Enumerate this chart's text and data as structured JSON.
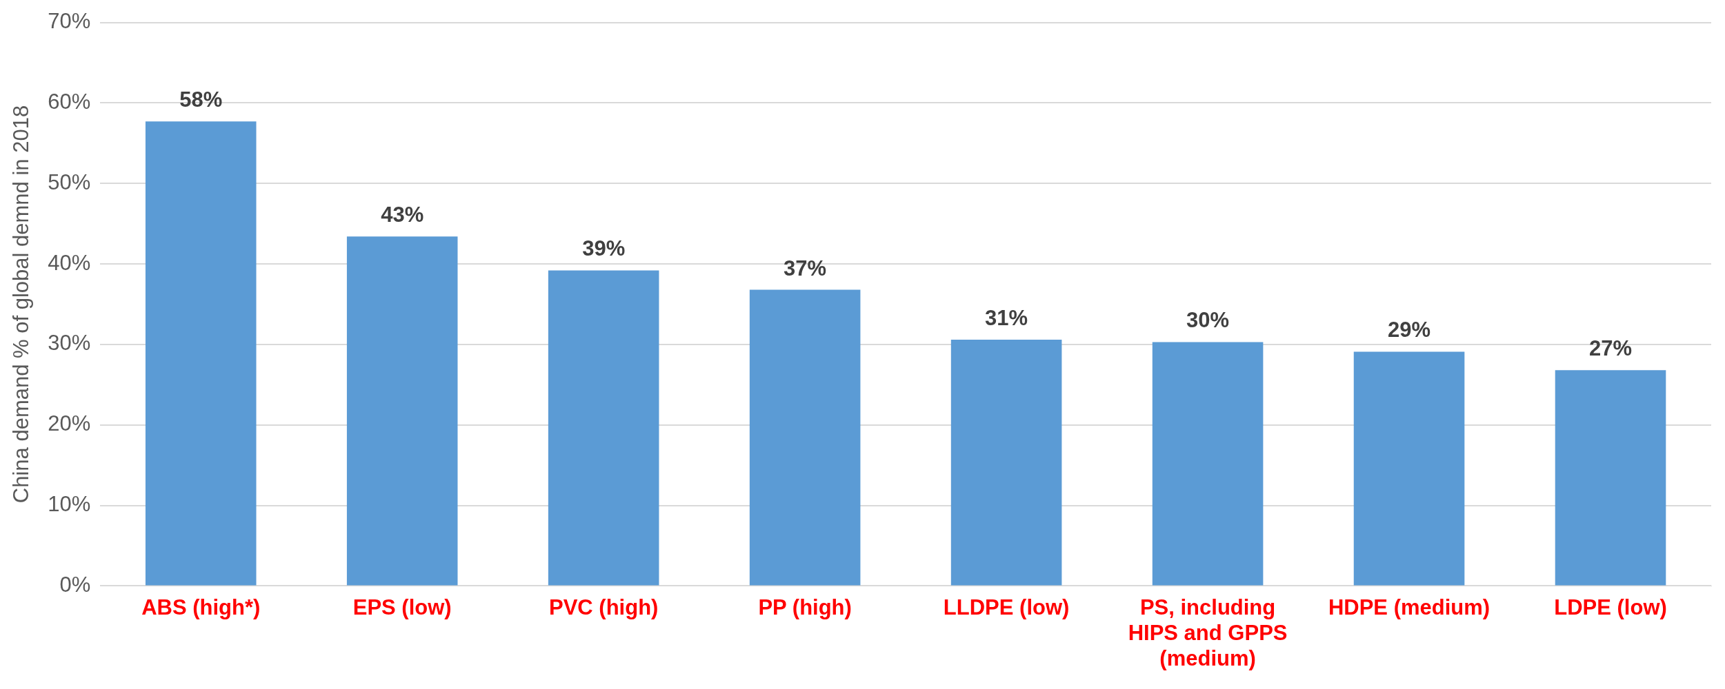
{
  "chart_data": {
    "type": "bar",
    "ylabel": "China demand % of global demnd in 2018",
    "categories": [
      "ABS (high*)",
      "EPS (low)",
      "PVC (high)",
      "PP (high)",
      "LLDPE (low)",
      "PS, including HIPS and GPPS (medium)",
      "HDPE (medium)",
      "LDPE (low)"
    ],
    "values": [
      57.7,
      43.4,
      39.2,
      36.8,
      30.6,
      30.3,
      29.1,
      26.8
    ],
    "value_labels": [
      "58%",
      "43%",
      "39%",
      "37%",
      "31%",
      "30%",
      "29%",
      "27%"
    ],
    "color": "#5b9bd5",
    "ylim": [
      0,
      70
    ],
    "yticks": [
      {
        "value": 0,
        "label": "0%"
      },
      {
        "value": 10,
        "label": "10%"
      },
      {
        "value": 20,
        "label": "20%"
      },
      {
        "value": 30,
        "label": "30%"
      },
      {
        "value": 40,
        "label": "40%"
      },
      {
        "value": 50,
        "label": "50%"
      },
      {
        "value": 60,
        "label": "60%"
      },
      {
        "value": 70,
        "label": "70%"
      }
    ],
    "grid": "y",
    "legend": false
  }
}
